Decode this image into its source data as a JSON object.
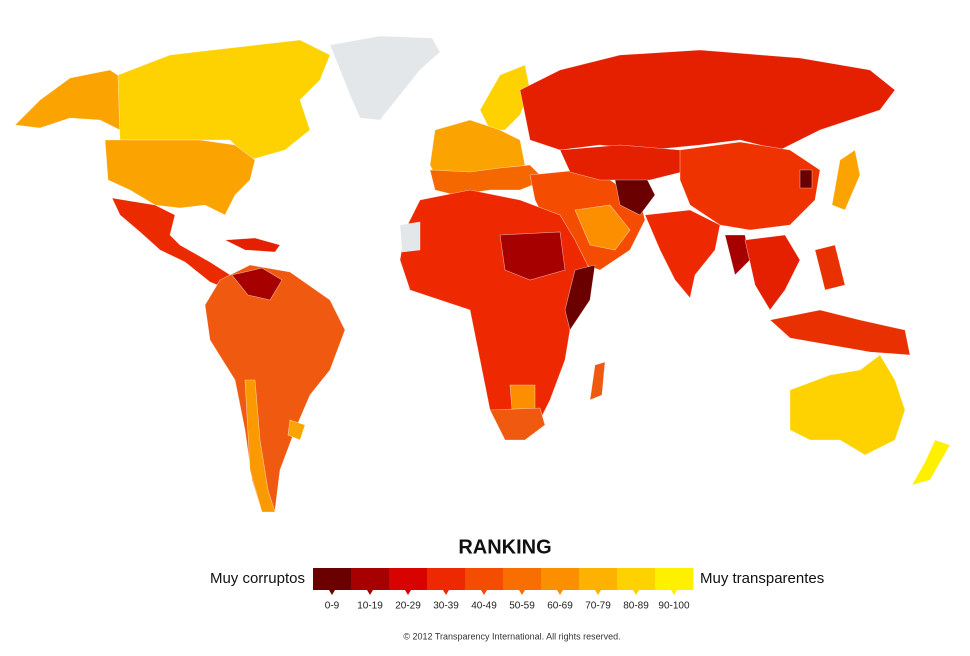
{
  "legend": {
    "title": "RANKING",
    "low_label": "Muy corruptos",
    "high_label": "Muy transparentes",
    "bins": [
      {
        "label": "0-9",
        "color": "#6b0000"
      },
      {
        "label": "10-19",
        "color": "#a60000"
      },
      {
        "label": "20-29",
        "color": "#d80300"
      },
      {
        "label": "30-39",
        "color": "#ee2800"
      },
      {
        "label": "40-49",
        "color": "#f44c00"
      },
      {
        "label": "50-59",
        "color": "#f86e00"
      },
      {
        "label": "60-69",
        "color": "#fb8f00"
      },
      {
        "label": "70-79",
        "color": "#fdb100"
      },
      {
        "label": "80-89",
        "color": "#fed200"
      },
      {
        "label": "90-100",
        "color": "#fff000"
      }
    ]
  },
  "footer": {
    "copyright": "© 2012 Transparency International. All rights reserved."
  }
}
